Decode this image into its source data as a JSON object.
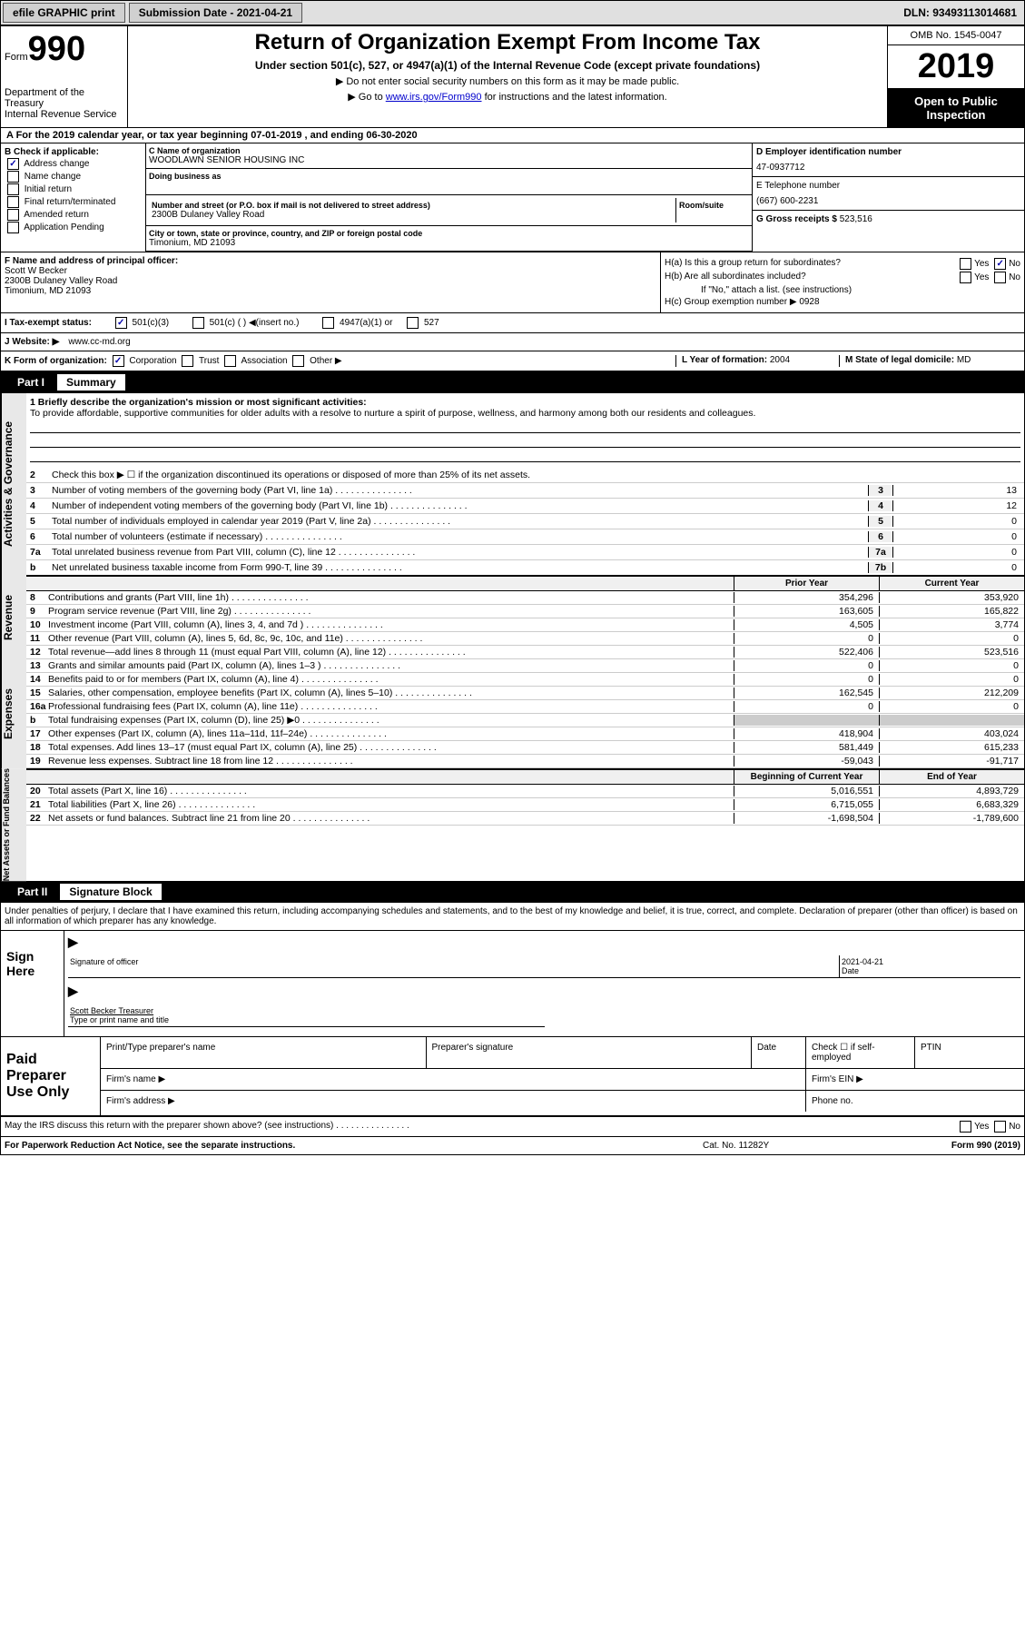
{
  "topbar": {
    "efile": "efile GRAPHIC print",
    "submission": "Submission Date - 2021-04-21",
    "dln": "DLN: 93493113014681"
  },
  "header": {
    "form_label": "Form",
    "form_num": "990",
    "dept": "Department of the Treasury\nInternal Revenue Service",
    "title": "Return of Organization Exempt From Income Tax",
    "subtitle": "Under section 501(c), 527, or 4947(a)(1) of the Internal Revenue Code (except private foundations)",
    "note1": "▶ Do not enter social security numbers on this form as it may be made public.",
    "note2": "▶ Go to ",
    "link": "www.irs.gov/Form990",
    "note2b": " for instructions and the latest information.",
    "omb": "OMB No. 1545-0047",
    "year": "2019",
    "public": "Open to Public Inspection"
  },
  "sectionA": "A   For the 2019 calendar year, or tax year beginning 07-01-2019     , and ending 06-30-2020",
  "boxB": {
    "label": "B Check if applicable:",
    "items": [
      "Address change",
      "Name change",
      "Initial return",
      "Final return/terminated",
      "Amended return",
      "Application Pending"
    ],
    "checked": [
      true,
      false,
      false,
      false,
      false,
      false
    ]
  },
  "boxC": {
    "name_label": "C Name of organization",
    "name": "WOODLAWN SENIOR HOUSING INC",
    "dba_label": "Doing business as",
    "addr_label": "Number and street (or P.O. box if mail is not delivered to street address)",
    "room_label": "Room/suite",
    "addr": "2300B Dulaney Valley Road",
    "city_label": "City or town, state or province, country, and ZIP or foreign postal code",
    "city": "Timonium, MD  21093"
  },
  "boxD": {
    "label": "D Employer identification number",
    "val": "47-0937712"
  },
  "boxE": {
    "label": "E Telephone number",
    "val": "(667) 600-2231"
  },
  "boxG": {
    "label": "G Gross receipts $",
    "val": "523,516"
  },
  "boxF": {
    "label": "F   Name and address of principal officer:",
    "name": "Scott W Becker",
    "addr1": "2300B Dulaney Valley Road",
    "addr2": "Timonium, MD  21093"
  },
  "boxH": {
    "a": "H(a)   Is this a group return for subordinates?",
    "a_no": "No",
    "b": "H(b)   Are all subordinates included?",
    "b_note": "If \"No,\" attach a list. (see instructions)",
    "c": "H(c)   Group exemption number ▶",
    "c_val": "0928"
  },
  "taxI": {
    "label": "I    Tax-exempt status:",
    "opts": [
      "501(c)(3)",
      "501(c) (   ) ◀(insert no.)",
      "4947(a)(1) or",
      "527"
    ]
  },
  "boxJ": {
    "label": "J    Website: ▶",
    "val": "www.cc-md.org"
  },
  "boxK": {
    "label": "K Form of organization:",
    "opts": [
      "Corporation",
      "Trust",
      "Association",
      "Other ▶"
    ]
  },
  "boxL": {
    "label": "L Year of formation:",
    "val": "2004"
  },
  "boxM": {
    "label": "M State of legal domicile:",
    "val": "MD"
  },
  "part1": {
    "num": "Part I",
    "title": "Summary"
  },
  "mission": {
    "label": "1    Briefly describe the organization's mission or most significant activities:",
    "text": "To provide affordable, supportive communities for older adults with a resolve to nurture a spirit of purpose, wellness, and harmony among both our residents and colleagues."
  },
  "line2": "Check this box ▶ ☐   if the organization discontinued its operations or disposed of more than 25% of its net assets.",
  "govLines": [
    {
      "n": "3",
      "t": "Number of voting members of the governing body (Part VI, line 1a)",
      "b": "3",
      "v": "13"
    },
    {
      "n": "4",
      "t": "Number of independent voting members of the governing body (Part VI, line 1b)",
      "b": "4",
      "v": "12"
    },
    {
      "n": "5",
      "t": "Total number of individuals employed in calendar year 2019 (Part V, line 2a)",
      "b": "5",
      "v": "0"
    },
    {
      "n": "6",
      "t": "Total number of volunteers (estimate if necessary)",
      "b": "6",
      "v": "0"
    },
    {
      "n": "7a",
      "t": "Total unrelated business revenue from Part VIII, column (C), line 12",
      "b": "7a",
      "v": "0"
    },
    {
      "n": "b",
      "t": "Net unrelated business taxable income from Form 990-T, line 39",
      "b": "7b",
      "v": "0"
    }
  ],
  "finHeaders": {
    "prior": "Prior Year",
    "current": "Current Year"
  },
  "revenue": [
    {
      "n": "8",
      "t": "Contributions and grants (Part VIII, line 1h)",
      "p": "354,296",
      "c": "353,920"
    },
    {
      "n": "9",
      "t": "Program service revenue (Part VIII, line 2g)",
      "p": "163,605",
      "c": "165,822"
    },
    {
      "n": "10",
      "t": "Investment income (Part VIII, column (A), lines 3, 4, and 7d )",
      "p": "4,505",
      "c": "3,774"
    },
    {
      "n": "11",
      "t": "Other revenue (Part VIII, column (A), lines 5, 6d, 8c, 9c, 10c, and 11e)",
      "p": "0",
      "c": "0"
    },
    {
      "n": "12",
      "t": "Total revenue—add lines 8 through 11 (must equal Part VIII, column (A), line 12)",
      "p": "522,406",
      "c": "523,516"
    }
  ],
  "expenses": [
    {
      "n": "13",
      "t": "Grants and similar amounts paid (Part IX, column (A), lines 1–3 )",
      "p": "0",
      "c": "0"
    },
    {
      "n": "14",
      "t": "Benefits paid to or for members (Part IX, column (A), line 4)",
      "p": "0",
      "c": "0"
    },
    {
      "n": "15",
      "t": "Salaries, other compensation, employee benefits (Part IX, column (A), lines 5–10)",
      "p": "162,545",
      "c": "212,209"
    },
    {
      "n": "16a",
      "t": "Professional fundraising fees (Part IX, column (A), line 11e)",
      "p": "0",
      "c": "0"
    },
    {
      "n": "b",
      "t": "Total fundraising expenses (Part IX, column (D), line 25) ▶0",
      "p": "shade",
      "c": "shade"
    },
    {
      "n": "17",
      "t": "Other expenses (Part IX, column (A), lines 11a–11d, 11f–24e)",
      "p": "418,904",
      "c": "403,024"
    },
    {
      "n": "18",
      "t": "Total expenses. Add lines 13–17 (must equal Part IX, column (A), line 25)",
      "p": "581,449",
      "c": "615,233"
    },
    {
      "n": "19",
      "t": "Revenue less expenses. Subtract line 18 from line 12",
      "p": "-59,043",
      "c": "-91,717"
    }
  ],
  "netHeaders": {
    "begin": "Beginning of Current Year",
    "end": "End of Year"
  },
  "netassets": [
    {
      "n": "20",
      "t": "Total assets (Part X, line 16)",
      "p": "5,016,551",
      "c": "4,893,729"
    },
    {
      "n": "21",
      "t": "Total liabilities (Part X, line 26)",
      "p": "6,715,055",
      "c": "6,683,329"
    },
    {
      "n": "22",
      "t": "Net assets or fund balances. Subtract line 21 from line 20",
      "p": "-1,698,504",
      "c": "-1,789,600"
    }
  ],
  "sidebars": {
    "gov": "Activities & Governance",
    "rev": "Revenue",
    "exp": "Expenses",
    "net": "Net Assets or Fund Balances"
  },
  "part2": {
    "num": "Part II",
    "title": "Signature Block"
  },
  "sig": {
    "penalty": "Under penalties of perjury, I declare that I have examined this return, including accompanying schedules and statements, and to the best of my knowledge and belief, it is true, correct, and complete. Declaration of preparer (other than officer) is based on all information of which preparer has any knowledge.",
    "sign_here": "Sign Here",
    "sig_label": "Signature of officer",
    "date_label": "Date",
    "date_val": "2021-04-21",
    "name": "Scott Becker  Treasurer",
    "name_label": "Type or print name and title"
  },
  "preparer": {
    "label": "Paid Preparer Use Only",
    "h1": "Print/Type preparer's name",
    "h2": "Preparer's signature",
    "h3": "Date",
    "h4": "Check ☐  if self-employed",
    "h5": "PTIN",
    "firm_name": "Firm's name      ▶",
    "firm_ein": "Firm's EIN ▶",
    "firm_addr": "Firm's address ▶",
    "phone": "Phone no."
  },
  "discuss": "May the IRS discuss this return with the preparer shown above? (see instructions)",
  "footer": {
    "left": "For Paperwork Reduction Act Notice, see the separate instructions.",
    "mid": "Cat. No. 11282Y",
    "right": "Form 990 (2019)"
  }
}
